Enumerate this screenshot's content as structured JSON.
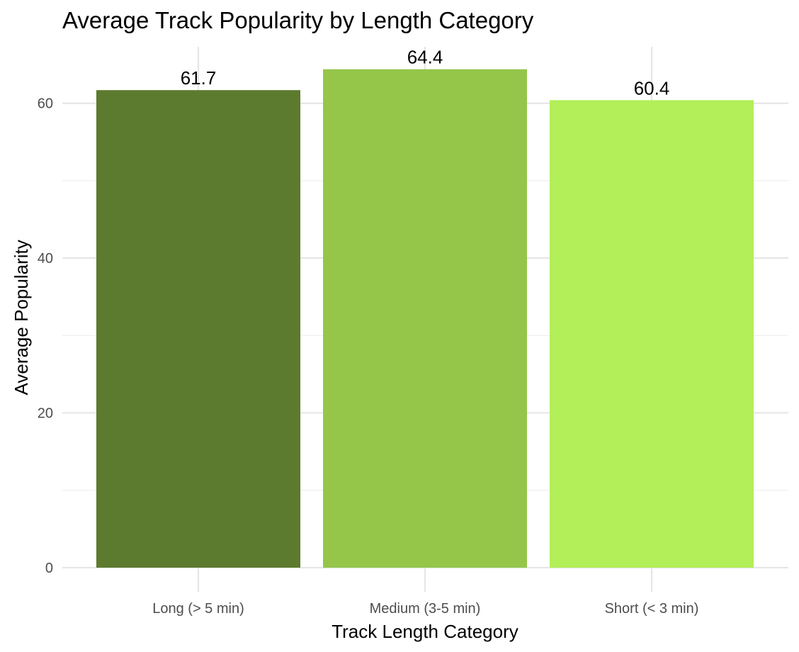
{
  "chart_data": {
    "type": "bar",
    "title": "Average Track Popularity by Length Category",
    "xlabel": "Track Length Category",
    "ylabel": "Average Popularity",
    "categories": [
      "Long (> 5 min)",
      "Medium (3-5 min)",
      "Short (< 3 min)"
    ],
    "values": [
      61.7,
      64.4,
      60.4
    ],
    "value_labels": [
      "61.7",
      "64.4",
      "60.4"
    ],
    "colors": [
      "#5d7b2f",
      "#95c64a",
      "#b2ef58"
    ],
    "ylim": [
      0,
      67.3
    ],
    "y_ticks": [
      0,
      20,
      40,
      60
    ],
    "y_tick_labels": [
      "0",
      "20",
      "40",
      "60"
    ],
    "y_minor_ticks": [
      10,
      30,
      50
    ],
    "grid": true,
    "legend": "none"
  }
}
